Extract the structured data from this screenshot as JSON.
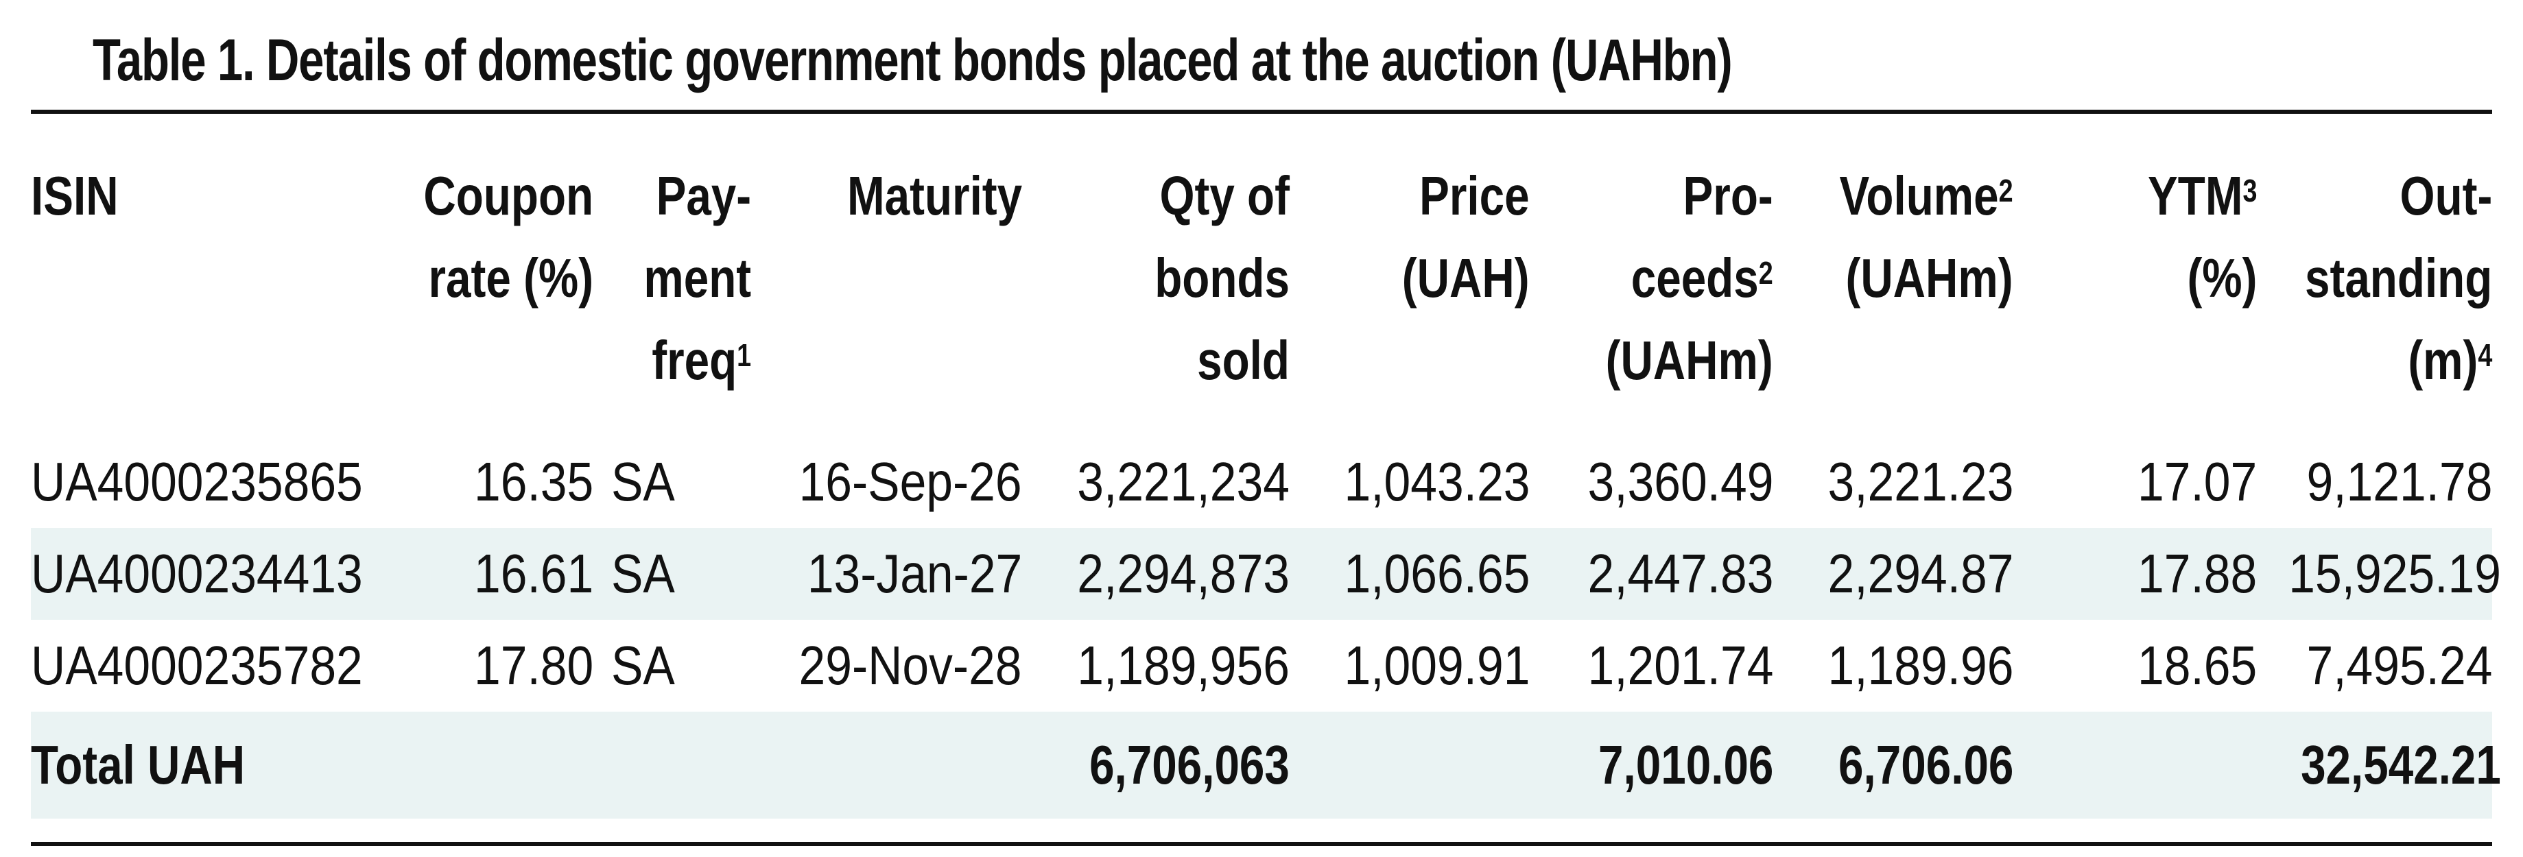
{
  "title": "Table 1. Details of domestic government bonds placed at the auction (UAHbn)",
  "columns": {
    "isin": {
      "line1": "ISIN",
      "line2": "",
      "line3": ""
    },
    "coupon": {
      "line1": "Coupon",
      "line2": "rate (%)",
      "line3": ""
    },
    "payment": {
      "line1": "Pay-",
      "line2": "ment",
      "line3": "freq",
      "sup": "1"
    },
    "maturity": {
      "line1": "Maturity"
    },
    "qty": {
      "line1": "Qty of",
      "line2": "bonds",
      "line3": "sold"
    },
    "price": {
      "line1": "Price",
      "line2": "(UAH)"
    },
    "proceeds": {
      "line1": "Pro-",
      "line2": "ceeds",
      "sup": "2",
      "line3": "(UAHm)"
    },
    "volume": {
      "line1": "Volume",
      "sup": "2",
      "line2": "(UAHm)"
    },
    "ytm": {
      "line1": "YTM",
      "sup": "3",
      "line2": "(%)"
    },
    "outstanding": {
      "line1": "Out-",
      "line2": "standing",
      "line3": "(m)",
      "sup": "4"
    }
  },
  "rows": [
    {
      "isin": "UA4000235865",
      "coupon": "16.35",
      "payment": "SA",
      "maturity": "16-Sep-26",
      "qty": "3,221,234",
      "price": "1,043.23",
      "proceeds": "3,360.49",
      "volume": "3,221.23",
      "ytm": "17.07",
      "outstanding": "9,121.78"
    },
    {
      "isin": "UA4000234413",
      "coupon": "16.61",
      "payment": "SA",
      "maturity": "13-Jan-27",
      "qty": "2,294,873",
      "price": "1,066.65",
      "proceeds": "2,447.83",
      "volume": "2,294.87",
      "ytm": "17.88",
      "outstanding": "15,925.19"
    },
    {
      "isin": "UA4000235782",
      "coupon": "17.80",
      "payment": "SA",
      "maturity": "29-Nov-28",
      "qty": "1,189,956",
      "price": "1,009.91",
      "proceeds": "1,201.74",
      "volume": "1,189.96",
      "ytm": "18.65",
      "outstanding": "7,495.24"
    }
  ],
  "total": {
    "label": "Total UAH",
    "qty": "6,706,063",
    "proceeds": "7,010.06",
    "volume": "6,706.06",
    "outstanding": "32,542.21"
  },
  "colors": {
    "shaded_row": "#eaf3f3",
    "rule": "#111111",
    "text": "#111111"
  }
}
